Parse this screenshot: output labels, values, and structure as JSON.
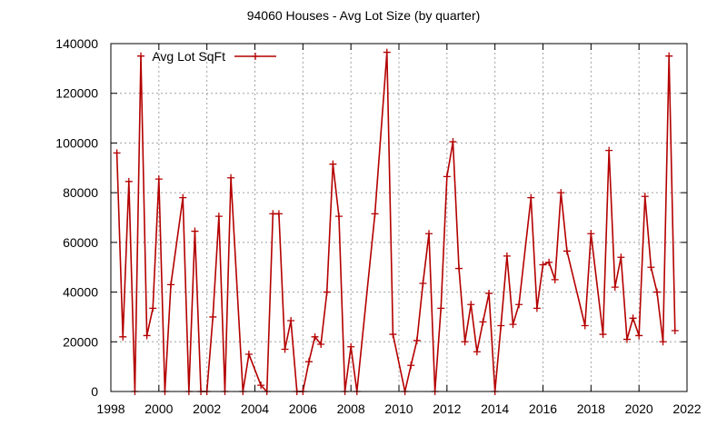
{
  "chart_data": {
    "type": "line",
    "title": "94060 Houses - Avg Lot Size (by quarter)",
    "xlim": [
      1998,
      2022
    ],
    "ylim": [
      0,
      140000
    ],
    "x_ticks": [
      1998,
      2000,
      2002,
      2004,
      2006,
      2008,
      2010,
      2012,
      2014,
      2016,
      2018,
      2020,
      2022
    ],
    "y_ticks": [
      0,
      20000,
      40000,
      60000,
      80000,
      100000,
      120000,
      140000
    ],
    "grid": true,
    "legend_position": "top-left",
    "series": [
      {
        "name": "Avg Lot SqFt",
        "color": "#b40000",
        "x": [
          1998.25,
          1998.5,
          1998.75,
          1999.0,
          1999.25,
          1999.5,
          1999.75,
          2000.0,
          2000.25,
          2000.5,
          2001.0,
          2001.25,
          2001.5,
          2001.75,
          2002.0,
          2002.25,
          2002.5,
          2002.75,
          2003.0,
          2003.5,
          2003.75,
          2004.25,
          2004.5,
          2004.75,
          2005.0,
          2005.25,
          2005.5,
          2005.75,
          2006.0,
          2006.25,
          2006.5,
          2006.75,
          2007.0,
          2007.25,
          2007.5,
          2007.75,
          2008.0,
          2008.25,
          2009.0,
          2009.5,
          2009.75,
          2010.25,
          2010.5,
          2010.75,
          2011.0,
          2011.25,
          2011.5,
          2011.75,
          2012.0,
          2012.25,
          2012.5,
          2012.75,
          2013.0,
          2013.25,
          2013.5,
          2013.75,
          2014.0,
          2014.25,
          2014.5,
          2014.75,
          2015.0,
          2015.5,
          2015.75,
          2016.0,
          2016.25,
          2016.5,
          2016.75,
          2017.0,
          2017.75,
          2018.0,
          2018.5,
          2018.75,
          2019.0,
          2019.25,
          2019.5,
          2019.75,
          2020.0,
          2020.25,
          2020.5,
          2020.75,
          2021.0,
          2021.25,
          2021.5
        ],
        "values": [
          96000,
          22000,
          84500,
          0,
          135000,
          22500,
          33500,
          85500,
          0,
          43000,
          78000,
          0,
          64500,
          0,
          0,
          30000,
          70500,
          0,
          86000,
          0,
          15000,
          2500,
          0,
          71500,
          71500,
          17000,
          28500,
          0,
          0,
          12000,
          22000,
          19000,
          40000,
          91500,
          70500,
          0,
          18000,
          0,
          71500,
          136500,
          23000,
          0,
          10500,
          20500,
          43500,
          63500,
          0,
          33500,
          86500,
          100500,
          49500,
          20000,
          35000,
          16000,
          28000,
          39500,
          0,
          26500,
          54500,
          27000,
          35000,
          78000,
          33500,
          51000,
          52000,
          45000,
          80000,
          56500,
          26500,
          63500,
          23000,
          97000,
          42000,
          54000,
          21000,
          29500,
          22500,
          78500,
          50000,
          40000,
          20000,
          135000,
          24500
        ]
      }
    ]
  }
}
